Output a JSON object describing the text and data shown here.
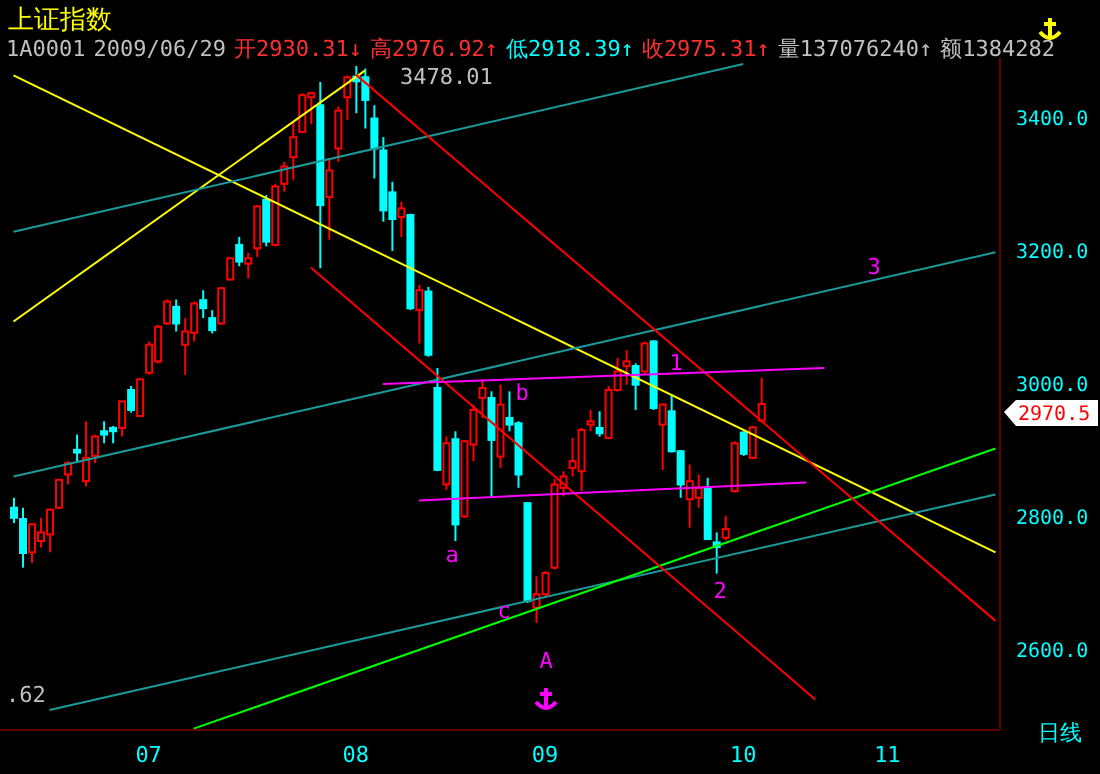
{
  "chart_data": {
    "type": "candlestick",
    "title": "上证指数",
    "categories": [
      null,
      null,
      null,
      null,
      null,
      null,
      null,
      null,
      null,
      null,
      null,
      null,
      null,
      null,
      null,
      "07",
      null,
      null,
      null,
      null,
      null,
      null,
      null,
      null,
      null,
      null,
      null,
      null,
      null,
      null,
      null,
      null,
      null,
      null,
      null,
      null,
      null,
      null,
      "08",
      null,
      null,
      null,
      null,
      null,
      null,
      null,
      null,
      null,
      null,
      null,
      null,
      null,
      null,
      null,
      null,
      null,
      null,
      null,
      null,
      "09",
      null,
      null,
      null,
      null,
      null,
      null,
      null,
      null,
      null,
      null,
      null,
      null,
      null,
      null,
      null,
      null,
      null,
      null,
      null,
      null,
      null,
      "10",
      null,
      null,
      null,
      null,
      null,
      null,
      null,
      null,
      null,
      null,
      null,
      null,
      null,
      null,
      null,
      "11",
      null,
      null,
      null,
      null,
      null,
      null,
      null,
      null,
      null,
      null,
      null,
      null
    ],
    "ohlc": [
      [
        2814,
        2829,
        2791,
        2799
      ],
      [
        2797,
        2814,
        2724,
        2746
      ],
      [
        2747,
        2791,
        2731,
        2789
      ],
      [
        2764,
        2799,
        2754,
        2777
      ],
      [
        2774,
        2813,
        2747,
        2811
      ],
      [
        2814,
        2856,
        2812,
        2856
      ],
      [
        2864,
        2884,
        2849,
        2881
      ],
      [
        2901,
        2924,
        2884,
        2897
      ],
      [
        2854,
        2944,
        2846,
        2889
      ],
      [
        2892,
        2924,
        2881,
        2921
      ],
      [
        2929,
        2944,
        2911,
        2924
      ],
      [
        2934,
        2937,
        2911,
        2929
      ],
      [
        2934,
        2974,
        2921,
        2974
      ],
      [
        2991,
        2997,
        2957,
        2961
      ],
      [
        2952,
        3009,
        2951,
        3007
      ],
      [
        3017,
        3064,
        3014,
        3059
      ],
      [
        3034,
        3089,
        3031,
        3086
      ],
      [
        3091,
        3127,
        3089,
        3124
      ],
      [
        3116,
        3127,
        3079,
        3091
      ],
      [
        3059,
        3099,
        3014,
        3079
      ],
      [
        3077,
        3124,
        3064,
        3121
      ],
      [
        3126,
        3141,
        3099,
        3114
      ],
      [
        3099,
        3111,
        3076,
        3081
      ],
      [
        3091,
        3146,
        3089,
        3144
      ],
      [
        3157,
        3189,
        3157,
        3189
      ],
      [
        3209,
        3221,
        3177,
        3184
      ],
      [
        3181,
        3197,
        3159,
        3189
      ],
      [
        3204,
        3269,
        3191,
        3267
      ],
      [
        3277,
        3284,
        3207,
        3214
      ],
      [
        3209,
        3301,
        3207,
        3297
      ],
      [
        3301,
        3334,
        3289,
        3327
      ],
      [
        3341,
        3394,
        3307,
        3371
      ],
      [
        3379,
        3437,
        3377,
        3434
      ],
      [
        3431,
        3439,
        3391,
        3437
      ],
      [
        3419,
        3454,
        3174,
        3269
      ],
      [
        3281,
        3339,
        3217,
        3321
      ],
      [
        3354,
        3417,
        3334,
        3411
      ],
      [
        3431,
        3464,
        3397,
        3461
      ],
      [
        3462,
        3478,
        3407,
        3455
      ],
      [
        3461,
        3474,
        3384,
        3427
      ],
      [
        3399,
        3419,
        3309,
        3354
      ],
      [
        3351,
        3371,
        3244,
        3261
      ],
      [
        3288,
        3304,
        3200,
        3248
      ],
      [
        3251,
        3274,
        3221,
        3264
      ],
      [
        3254,
        3256,
        3111,
        3114
      ],
      [
        3111,
        3149,
        3061,
        3141
      ],
      [
        3139,
        3146,
        3041,
        3044
      ],
      [
        2994,
        3024,
        2869,
        2871
      ],
      [
        2849,
        2921,
        2841,
        2911
      ],
      [
        2917,
        2929,
        2764,
        2789
      ],
      [
        2801,
        2916,
        2799,
        2914
      ],
      [
        2909,
        2969,
        2884,
        2961
      ],
      [
        2979,
        3007,
        2949,
        2994
      ],
      [
        2979,
        2989,
        2829,
        2916
      ],
      [
        2891,
        2999,
        2874,
        2969
      ],
      [
        2949,
        2989,
        2929,
        2939
      ],
      [
        2941,
        2944,
        2844,
        2864
      ],
      [
        2821,
        2821,
        2671,
        2674
      ],
      [
        2664,
        2711,
        2641,
        2684
      ],
      [
        2684,
        2719,
        2679,
        2716
      ],
      [
        2724,
        2857,
        2721,
        2849
      ],
      [
        2844,
        2869,
        2831,
        2861
      ],
      [
        2874,
        2919,
        2861,
        2884
      ],
      [
        2869,
        2934,
        2839,
        2931
      ],
      [
        2939,
        2961,
        2929,
        2944
      ],
      [
        2934,
        2959,
        2921,
        2926
      ],
      [
        2919,
        2997,
        2917,
        2991
      ],
      [
        2991,
        3039,
        2989,
        3019
      ],
      [
        3027,
        3051,
        2999,
        3034
      ],
      [
        3027,
        3031,
        2961,
        2999
      ],
      [
        3019,
        3064,
        3014,
        3061
      ],
      [
        3064,
        3066,
        2961,
        2964
      ],
      [
        2939,
        2971,
        2871,
        2969
      ],
      [
        2959,
        2984,
        2897,
        2899
      ],
      [
        2899,
        2901,
        2829,
        2849
      ],
      [
        2827,
        2879,
        2784,
        2854
      ],
      [
        2829,
        2864,
        2814,
        2844
      ],
      [
        2844,
        2859,
        2767,
        2767
      ],
      [
        2762,
        2777,
        2715,
        2755
      ],
      [
        2769,
        2802,
        2765,
        2782
      ],
      [
        2839,
        2914,
        2837,
        2911
      ],
      [
        2927,
        2929,
        2892,
        2895
      ],
      [
        2889,
        2937,
        2887,
        2935
      ],
      [
        2945,
        3009,
        2942,
        2970
      ],
      null,
      null,
      null,
      null,
      null,
      null,
      null,
      null,
      null,
      null,
      null,
      null,
      null,
      null,
      null,
      null,
      null,
      null,
      null,
      null,
      null,
      null,
      null,
      null,
      null,
      null
    ],
    "colors": [
      "#00ffff",
      "#00ffff",
      "#ff0000",
      "#ff0000",
      "#ff0000",
      "#ff0000",
      "#ff0000",
      "#00ffff",
      "#ff0000",
      "#ff0000",
      "#00ffff",
      "#00ffff",
      "#ff0000",
      "#00ffff",
      "#ff0000",
      "#ff0000",
      "#ff0000",
      "#ff0000",
      "#00ffff",
      "#ff0000",
      "#ff0000",
      "#00ffff",
      "#00ffff",
      "#ff0000",
      "#ff0000",
      "#00ffff",
      "#ff0000",
      "#ff0000",
      "#00ffff",
      "#ff0000",
      "#ff0000",
      "#ff0000",
      "#ff0000",
      "#ff0000",
      "#00ffff",
      "#ff0000",
      "#ff0000",
      "#ff0000",
      "#00ffff",
      "#00ffff",
      "#00ffff",
      "#00ffff",
      "#00ffff",
      "#ff0000",
      "#00ffff",
      "#ff0000",
      "#00ffff",
      "#00ffff",
      "#ff0000",
      "#00ffff",
      "#ff0000",
      "#ff0000",
      "#ff0000",
      "#00ffff",
      "#ff0000",
      "#00ffff",
      "#00ffff",
      "#00ffff",
      "#ff0000",
      "#ff0000",
      "#ff0000",
      "#ff0000",
      "#ff0000",
      "#ff0000",
      "#ff0000",
      "#00ffff",
      "#ff0000",
      "#ff0000",
      "#ff0000",
      "#00ffff",
      "#ff0000",
      "#00ffff",
      "#ff0000",
      "#00ffff",
      "#00ffff",
      "#ff0000",
      "#ff0000",
      "#00ffff",
      "#00ffff",
      "#ff0000",
      "#ff0000",
      "#00ffff",
      "#ff0000",
      "#ff0000",
      null,
      null,
      null,
      null,
      null,
      null,
      null,
      null,
      null,
      null,
      null,
      null,
      null,
      null,
      null,
      null,
      null,
      null,
      null,
      null,
      null,
      null,
      null,
      null,
      null,
      null
    ],
    "series": [
      {
        "type": "line",
        "color": "#ffff00",
        "values": [
          3464,
          null,
          null,
          null,
          null,
          null,
          null,
          null,
          null,
          null,
          null,
          null,
          null,
          null,
          null,
          null,
          null,
          null,
          null,
          null,
          null,
          null,
          null,
          null,
          null,
          null,
          null,
          null,
          null,
          null,
          null,
          null,
          null,
          null,
          null,
          null,
          null,
          null,
          null,
          null,
          null,
          null,
          null,
          null,
          null,
          null,
          null,
          null,
          null,
          null,
          null,
          null,
          null,
          null,
          null,
          null,
          null,
          null,
          null,
          null,
          null,
          null,
          null,
          null,
          null,
          null,
          null,
          null,
          null,
          null,
          null,
          null,
          null,
          null,
          null,
          null,
          null,
          null,
          null,
          null,
          null,
          null,
          null,
          null,
          null,
          null,
          null,
          null,
          null,
          null,
          null,
          null,
          null,
          null,
          null,
          null,
          null,
          null,
          null,
          null,
          null,
          null,
          null,
          null,
          null,
          null,
          null,
          null,
          null,
          2747
        ]
      },
      {
        "type": "line",
        "color": "#ffff00",
        "values": [
          3094,
          null,
          null,
          null,
          null,
          null,
          null,
          null,
          null,
          null,
          null,
          null,
          null,
          null,
          null,
          null,
          null,
          null,
          null,
          null,
          null,
          null,
          null,
          null,
          null,
          null,
          null,
          null,
          null,
          null,
          null,
          null,
          null,
          null,
          null,
          null,
          null,
          null,
          null,
          3471,
          null,
          null,
          null,
          null,
          null,
          null,
          null,
          null,
          null,
          null,
          null,
          null,
          null,
          null,
          null,
          null,
          null,
          null,
          null,
          null,
          null,
          null,
          null,
          null,
          null,
          null,
          null,
          null,
          null,
          null,
          null,
          null,
          null,
          null,
          null,
          null,
          null,
          null,
          null,
          null,
          null,
          null,
          null,
          null,
          null,
          null,
          null,
          null,
          null,
          null,
          null,
          null,
          null,
          null,
          null,
          null,
          null,
          null,
          null,
          null,
          null,
          null,
          null,
          null,
          null,
          null,
          null,
          null,
          null,
          null
        ]
      },
      {
        "type": "line",
        "color": "#1a9a9a",
        "values": [
          3229,
          null,
          null,
          null,
          null,
          null,
          null,
          null,
          null,
          null,
          null,
          null,
          null,
          null,
          null,
          null,
          null,
          null,
          null,
          null,
          null,
          null,
          null,
          null,
          null,
          null,
          null,
          null,
          null,
          null,
          null,
          null,
          null,
          null,
          null,
          null,
          null,
          null,
          null,
          null,
          null,
          null,
          null,
          null,
          null,
          null,
          null,
          null,
          null,
          null,
          null,
          null,
          null,
          null,
          null,
          null,
          null,
          null,
          null,
          null,
          null,
          null,
          null,
          null,
          null,
          null,
          null,
          null,
          null,
          null,
          null,
          null,
          null,
          null,
          null,
          null,
          null,
          null,
          null,
          null,
          null,
          3481,
          null,
          null,
          null,
          null,
          null,
          null,
          null,
          null,
          null,
          null,
          null,
          null,
          null,
          null,
          null,
          null,
          null,
          null,
          null,
          null,
          null,
          null,
          null,
          null,
          null,
          null,
          null,
          null
        ]
      },
      {
        "type": "line",
        "color": "#1a9a9a",
        "values": [
          2861,
          null,
          null,
          null,
          null,
          null,
          null,
          null,
          null,
          null,
          null,
          null,
          null,
          null,
          null,
          null,
          null,
          null,
          null,
          null,
          null,
          null,
          null,
          null,
          null,
          null,
          null,
          null,
          null,
          null,
          null,
          null,
          null,
          null,
          null,
          null,
          null,
          null,
          null,
          null,
          null,
          null,
          null,
          null,
          null,
          null,
          null,
          null,
          null,
          null,
          null,
          null,
          null,
          null,
          null,
          null,
          null,
          null,
          null,
          null,
          null,
          null,
          null,
          null,
          null,
          null,
          null,
          null,
          null,
          null,
          null,
          null,
          null,
          null,
          null,
          null,
          null,
          null,
          null,
          null,
          null,
          null,
          null,
          null,
          null,
          null,
          null,
          null,
          null,
          null,
          null,
          null,
          null,
          null,
          null,
          null,
          null,
          null,
          null,
          null,
          null,
          null,
          null,
          null,
          null,
          null,
          null,
          null,
          null,
          3198
        ]
      },
      {
        "type": "line",
        "color": "#1a9a9a",
        "values": [
          null,
          null,
          null,
          null,
          2510,
          null,
          null,
          null,
          null,
          null,
          null,
          null,
          null,
          null,
          null,
          null,
          null,
          null,
          null,
          null,
          null,
          null,
          null,
          null,
          null,
          null,
          null,
          null,
          null,
          null,
          null,
          null,
          null,
          null,
          null,
          null,
          null,
          null,
          null,
          null,
          null,
          null,
          null,
          null,
          null,
          null,
          null,
          null,
          null,
          null,
          null,
          null,
          null,
          null,
          null,
          null,
          null,
          null,
          null,
          null,
          null,
          null,
          null,
          null,
          null,
          null,
          null,
          null,
          null,
          null,
          null,
          null,
          null,
          null,
          null,
          null,
          null,
          null,
          null,
          null,
          null,
          null,
          null,
          null,
          null,
          null,
          null,
          null,
          null,
          null,
          null,
          null,
          null,
          null,
          null,
          null,
          null,
          null,
          null,
          null,
          null,
          null,
          null,
          null,
          null,
          null,
          null,
          null,
          null,
          2834
        ]
      },
      {
        "type": "line",
        "color": "#00ff00",
        "values": [
          null,
          null,
          null,
          null,
          null,
          null,
          null,
          null,
          null,
          null,
          null,
          null,
          null,
          null,
          null,
          null,
          null,
          null,
          null,
          null,
          2482,
          null,
          null,
          null,
          null,
          null,
          null,
          null,
          null,
          null,
          null,
          null,
          null,
          null,
          null,
          null,
          null,
          null,
          null,
          null,
          null,
          null,
          null,
          null,
          null,
          null,
          null,
          null,
          null,
          null,
          null,
          null,
          null,
          null,
          null,
          null,
          null,
          null,
          null,
          null,
          null,
          null,
          null,
          null,
          null,
          null,
          null,
          null,
          null,
          null,
          null,
          null,
          null,
          null,
          null,
          null,
          null,
          null,
          null,
          null,
          null,
          null,
          null,
          null,
          null,
          null,
          null,
          null,
          null,
          null,
          null,
          null,
          null,
          null,
          null,
          null,
          null,
          null,
          null,
          null,
          null,
          null,
          null,
          null,
          null,
          null,
          null,
          null,
          null,
          2903
        ]
      },
      {
        "type": "line",
        "color": "#ff0000",
        "values": [
          null,
          null,
          null,
          null,
          null,
          null,
          null,
          null,
          null,
          null,
          null,
          null,
          null,
          null,
          null,
          null,
          null,
          null,
          null,
          null,
          null,
          null,
          null,
          null,
          null,
          null,
          null,
          null,
          null,
          null,
          null,
          null,
          null,
          null,
          null,
          null,
          null,
          null,
          3465,
          null,
          null,
          null,
          null,
          null,
          null,
          null,
          null,
          null,
          null,
          null,
          null,
          null,
          null,
          null,
          null,
          null,
          null,
          null,
          null,
          null,
          null,
          null,
          null,
          null,
          null,
          null,
          null,
          null,
          null,
          null,
          null,
          null,
          null,
          null,
          null,
          null,
          null,
          null,
          null,
          null,
          null,
          null,
          null,
          null,
          null,
          null,
          null,
          null,
          null,
          null,
          null,
          null,
          null,
          null,
          null,
          null,
          null,
          null,
          null,
          null,
          null,
          null,
          null,
          null,
          null,
          null,
          null,
          null,
          null,
          2644
        ]
      },
      {
        "type": "line",
        "color": "#ff0000",
        "values": [
          null,
          null,
          null,
          null,
          null,
          null,
          null,
          null,
          null,
          null,
          null,
          null,
          null,
          null,
          null,
          null,
          null,
          null,
          null,
          null,
          null,
          null,
          null,
          null,
          null,
          null,
          null,
          null,
          null,
          null,
          null,
          null,
          null,
          3175,
          null,
          null,
          null,
          null,
          null,
          null,
          null,
          null,
          null,
          null,
          null,
          null,
          null,
          null,
          null,
          null,
          null,
          null,
          null,
          null,
          null,
          null,
          null,
          null,
          null,
          null,
          null,
          null,
          null,
          null,
          null,
          null,
          null,
          null,
          null,
          null,
          null,
          null,
          null,
          null,
          null,
          null,
          null,
          null,
          null,
          null,
          null,
          null,
          null,
          null,
          null,
          null,
          null,
          null,
          null,
          2526,
          null,
          null,
          null,
          null,
          null,
          null,
          null,
          null,
          null,
          null,
          null,
          null,
          null,
          null,
          null,
          null,
          null,
          null,
          null,
          null
        ]
      },
      {
        "type": "line",
        "color": "#ff00ff",
        "values": [
          null,
          null,
          null,
          null,
          null,
          null,
          null,
          null,
          null,
          null,
          null,
          null,
          null,
          null,
          null,
          null,
          null,
          null,
          null,
          null,
          null,
          null,
          null,
          null,
          null,
          null,
          null,
          null,
          null,
          null,
          null,
          null,
          null,
          null,
          null,
          null,
          null,
          null,
          null,
          null,
          null,
          3000,
          null,
          null,
          null,
          null,
          null,
          null,
          null,
          null,
          null,
          null,
          null,
          null,
          null,
          null,
          null,
          null,
          null,
          null,
          null,
          null,
          null,
          null,
          null,
          null,
          null,
          null,
          null,
          null,
          null,
          null,
          null,
          null,
          null,
          null,
          null,
          null,
          null,
          null,
          null,
          null,
          null,
          null,
          null,
          null,
          null,
          null,
          null,
          null,
          3024,
          null,
          null,
          null,
          null,
          null,
          null,
          null,
          null,
          null,
          null,
          null,
          null,
          null,
          null,
          null,
          null,
          null,
          null,
          null
        ]
      },
      {
        "type": "line",
        "color": "#ff00ff",
        "values": [
          null,
          null,
          null,
          null,
          null,
          null,
          null,
          null,
          null,
          null,
          null,
          null,
          null,
          null,
          null,
          null,
          null,
          null,
          null,
          null,
          null,
          null,
          null,
          null,
          null,
          null,
          null,
          null,
          null,
          null,
          null,
          null,
          null,
          null,
          null,
          null,
          null,
          null,
          null,
          null,
          null,
          null,
          null,
          null,
          null,
          2825,
          null,
          null,
          null,
          null,
          null,
          null,
          null,
          null,
          null,
          null,
          null,
          null,
          null,
          null,
          null,
          null,
          null,
          null,
          null,
          null,
          null,
          null,
          null,
          null,
          null,
          null,
          null,
          null,
          null,
          null,
          null,
          null,
          null,
          null,
          null,
          null,
          null,
          null,
          null,
          null,
          null,
          null,
          2852,
          null,
          null,
          null,
          null,
          null,
          null,
          null,
          null,
          null,
          null,
          null,
          null,
          null,
          null,
          null,
          null,
          null,
          null,
          null,
          null,
          null
        ]
      }
    ],
    "ylim": [
      2480,
      3490
    ],
    "yticks": [
      {
        "value": 2600,
        "label": "2600.0"
      },
      {
        "value": 2800,
        "label": "2800.0"
      },
      {
        "value": 3000,
        "label": "3000.0"
      },
      {
        "value": 3200,
        "label": "3200.0"
      },
      {
        "value": 3400,
        "label": "3400.0"
      }
    ],
    "annotations": [
      "1A0001",
      "2009/06/29",
      "开2930.31↓",
      "高2976.92↑",
      "低2918.39↑",
      "收2975.31↑",
      "量137076240↑",
      "额1384282",
      ".62",
      "日线",
      "3478.01",
      "a",
      "b",
      "c",
      "A",
      "1",
      "2",
      "3",
      "2970.5"
    ]
  }
}
